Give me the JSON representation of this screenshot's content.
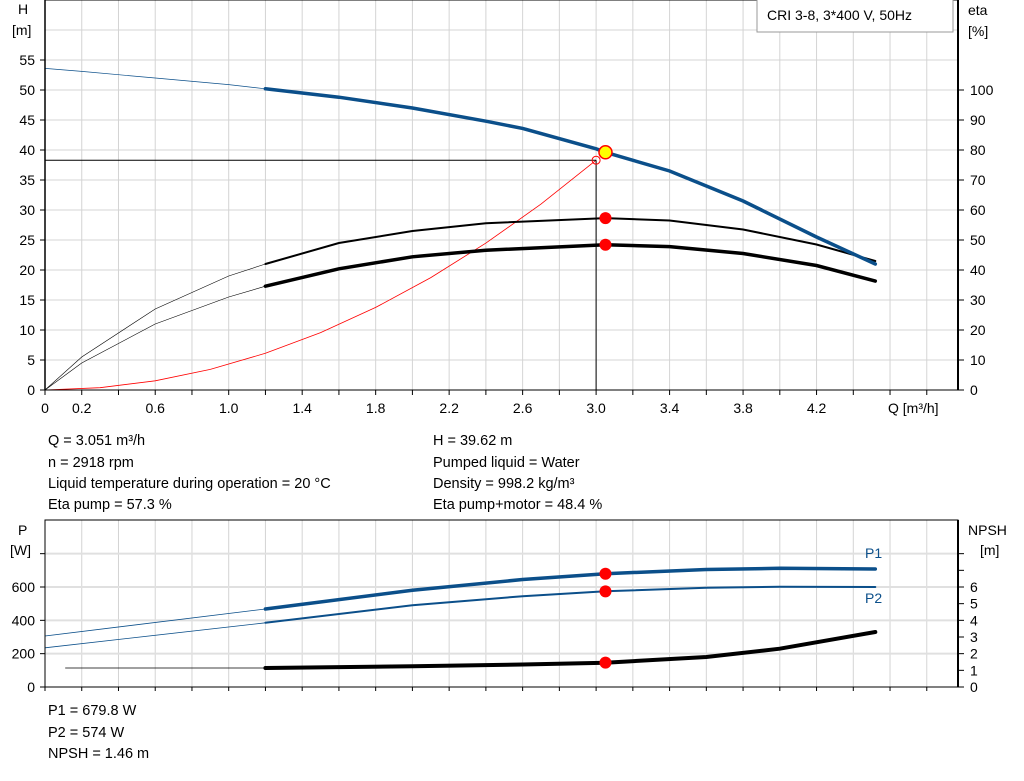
{
  "chart_data": [
    {
      "type": "line",
      "title": "CRI 3-8, 3*400 V, 50Hz",
      "xlabel": "Q [m³/h]",
      "ylabel": "H\n[m]",
      "ylabel_top": "H",
      "ylabel_unit": "[m]",
      "y2label_top": "eta",
      "y2label_unit": "[%]",
      "xlim": [
        0,
        4.97
      ],
      "ylim": [
        0,
        65
      ],
      "y2lim": [
        0,
        130
      ],
      "xticks": [
        "0",
        "0.2",
        "0.6",
        "1.0",
        "1.4",
        "1.8",
        "2.2",
        "2.6",
        "3.0",
        "3.4",
        "3.8",
        "4.2"
      ],
      "yticks": [
        "0",
        "5",
        "10",
        "15",
        "20",
        "25",
        "30",
        "35",
        "40",
        "45",
        "50",
        "55"
      ],
      "y2ticks": [
        "0",
        "10",
        "20",
        "30",
        "40",
        "50",
        "60",
        "70",
        "80",
        "90",
        "100"
      ],
      "grid": true,
      "colors": {
        "head": "#0b4f8a",
        "eta": "#000000",
        "system": "#ff0000",
        "marker": "#ff0000",
        "duty": "#ffff00"
      },
      "series": [
        {
          "key": "head",
          "axis": "H",
          "thin_until": 1.2,
          "x": [
            0,
            0.2,
            0.6,
            1.0,
            1.2,
            1.6,
            2.0,
            2.4,
            2.6,
            3.0,
            3.051,
            3.4,
            3.8,
            4.2,
            4.52
          ],
          "y": [
            53.6,
            53.1,
            52.0,
            50.9,
            50.2,
            48.8,
            47.0,
            44.8,
            43.6,
            40.2,
            39.62,
            36.5,
            31.5,
            25.5,
            21.0
          ]
        },
        {
          "key": "eta_pump",
          "axis": "eta",
          "thin_until": 1.2,
          "x": [
            0,
            0.2,
            0.6,
            1.0,
            1.2,
            1.6,
            2.0,
            2.4,
            3.051,
            3.4,
            3.8,
            4.2,
            4.52
          ],
          "y": [
            0,
            11,
            27,
            38,
            42,
            49,
            53,
            55.6,
            57.3,
            56.5,
            53.5,
            48.5,
            43
          ]
        },
        {
          "key": "eta_pump_motor",
          "axis": "eta",
          "thin_until": 1.2,
          "x": [
            0,
            0.2,
            0.6,
            1.0,
            1.2,
            1.6,
            2.0,
            2.4,
            3.051,
            3.4,
            3.8,
            4.2,
            4.52
          ],
          "y": [
            0,
            9,
            22,
            31,
            34.6,
            40.4,
            44.4,
            46.6,
            48.4,
            47.8,
            45.5,
            41.5,
            36.3
          ]
        },
        {
          "key": "system",
          "axis": "H",
          "x": [
            0,
            0.3,
            0.6,
            0.9,
            1.2,
            1.5,
            1.8,
            2.1,
            2.4,
            2.7,
            3.0
          ],
          "y": [
            0,
            0.38,
            1.53,
            3.44,
            6.12,
            9.56,
            13.77,
            18.74,
            24.48,
            30.98,
            38.3
          ]
        }
      ],
      "duty_point": {
        "Q": 3.051,
        "H": 39.62,
        "eta_pump": 57.3,
        "eta_pump_motor": 48.4
      },
      "requested_point": {
        "Q": 3.0,
        "H": 38.3
      }
    },
    {
      "type": "line",
      "ylabel_top": "P",
      "ylabel_unit": "[W]",
      "y2label_top": "NPSH",
      "y2label_unit": "[m]",
      "xlim": [
        0,
        4.97
      ],
      "ylim": [
        0,
        1000
      ],
      "y2lim": [
        0,
        10
      ],
      "yticks": [
        "0",
        "200",
        "400",
        "600"
      ],
      "y2ticks": [
        "0",
        "1",
        "2",
        "3",
        "4",
        "5",
        "6"
      ],
      "grid": true,
      "series": [
        {
          "name": "P1",
          "key": "p1",
          "axis": "P",
          "thin_until": 1.2,
          "x": [
            0,
            1.2,
            2.0,
            2.6,
            3.051,
            3.6,
            4.0,
            4.52
          ],
          "y": [
            306,
            468,
            580,
            645,
            679.8,
            705,
            712,
            708
          ]
        },
        {
          "name": "P2",
          "key": "p2",
          "axis": "P",
          "thin_until": 1.2,
          "x": [
            0,
            1.2,
            2.0,
            2.6,
            3.051,
            3.6,
            4.0,
            4.52
          ],
          "y": [
            235,
            385,
            490,
            545,
            574,
            595,
            602,
            600
          ]
        },
        {
          "key": "npsh",
          "axis": "NPSH",
          "thin_until": 1.2,
          "x": [
            0.11,
            1.2,
            2.0,
            2.6,
            3.051,
            3.6,
            4.0,
            4.52
          ],
          "y": [
            1.14,
            1.14,
            1.25,
            1.35,
            1.46,
            1.8,
            2.3,
            3.3
          ]
        }
      ],
      "duty_point": {
        "Q": 3.051,
        "P1": 679.8,
        "P2": 574,
        "NPSH": 1.46
      }
    }
  ],
  "info": {
    "q": "Q = 3.051 m³/h",
    "n": "n = 2918 rpm",
    "temp": "Liquid temperature during operation = 20 °C",
    "eta_pump": "Eta pump = 57.3 %",
    "h": "H = 39.62 m",
    "liquid": "Pumped liquid = Water",
    "density": "Density = 998.2 kg/m³",
    "eta_pm": "Eta pump+motor = 48.4 %",
    "p1": "P1 = 679.8 W",
    "p2": "P2 = 574 W",
    "npsh": "NPSH = 1.46 m"
  }
}
